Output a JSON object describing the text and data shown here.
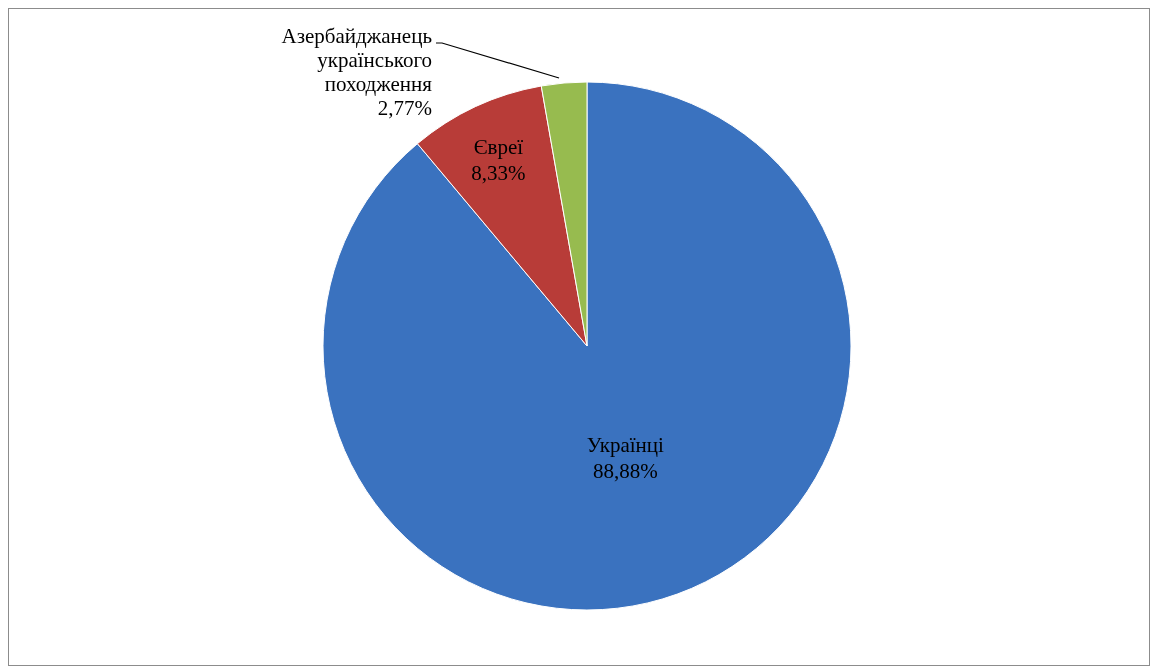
{
  "chart_data": {
    "type": "pie",
    "categories": [
      "Українці",
      "Євреї",
      "Азербайджанець українського походження"
    ],
    "values": [
      88.88,
      8.33,
      2.77
    ],
    "value_labels": [
      "88,88%",
      "8,33%",
      "2,77%"
    ],
    "colors": [
      "#3a72bf",
      "#b83c38",
      "#97bb4f"
    ]
  }
}
